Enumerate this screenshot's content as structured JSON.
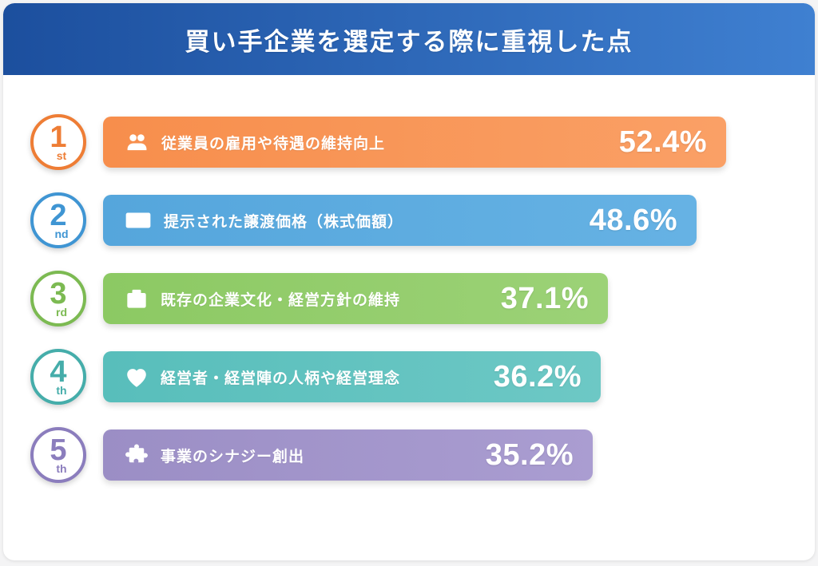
{
  "header": {
    "title": "買い手企業を選定する際に重視した点",
    "bg_from": "#1c4f9e",
    "bg_to": "#3f80d1"
  },
  "chart_data": {
    "type": "bar",
    "orientation": "horizontal",
    "title": "買い手企業を選定する際に重視した点",
    "unit": "%",
    "xlim": [
      0,
      60
    ],
    "grid": false,
    "categories": [
      "従業員の雇用や待遇の維持向上",
      "提示された譲渡価格（株式価額）",
      "既存の企業文化・経営方針の維持",
      "経営者・経営陣の人柄や経営理念",
      "事業のシナジー創出"
    ],
    "values": [
      52.4,
      48.6,
      37.1,
      36.2,
      35.2
    ],
    "items": [
      {
        "rank": "1",
        "rank_suffix": "st",
        "label": "従業員の雇用や待遇の維持向上",
        "value_label": "52.4%",
        "icon": "users-icon",
        "accent": "#ee7d35",
        "bar_from": "#f78e4c",
        "bar_to": "#faa066"
      },
      {
        "rank": "2",
        "rank_suffix": "nd",
        "label": "提示された譲渡価格（株式価額）",
        "value_label": "48.6%",
        "icon": "banknote-icon",
        "accent": "#3f95d3",
        "bar_from": "#55a6dc",
        "bar_to": "#66b2e4"
      },
      {
        "rank": "3",
        "rank_suffix": "rd",
        "label": "既存の企業文化・経営方針の維持",
        "value_label": "37.1%",
        "icon": "briefcase-icon",
        "accent": "#7cba52",
        "bar_from": "#8cc963",
        "bar_to": "#9cd277"
      },
      {
        "rank": "4",
        "rank_suffix": "th",
        "label": "経営者・経営陣の人柄や経営理念",
        "value_label": "36.2%",
        "icon": "heart-icon",
        "accent": "#45adaa",
        "bar_from": "#58bebb",
        "bar_to": "#6dc8c5"
      },
      {
        "rank": "5",
        "rank_suffix": "th",
        "label": "事業のシナジー創出",
        "value_label": "35.2%",
        "icon": "puzzle-icon",
        "accent": "#8b7dbd",
        "bar_from": "#9b8ec5",
        "bar_to": "#aa9dd1"
      }
    ]
  }
}
